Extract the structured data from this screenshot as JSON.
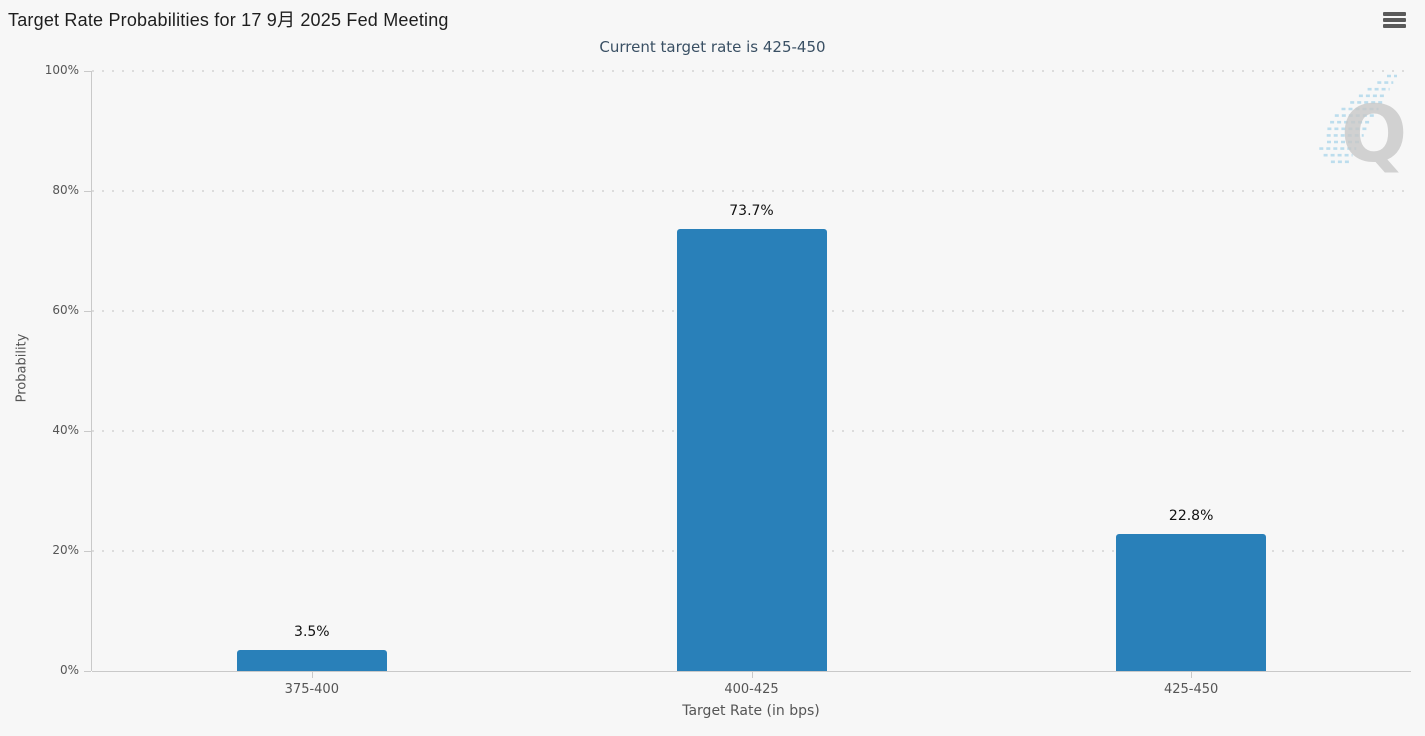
{
  "header": {
    "title": "Target Rate Probabilities for 17 9月 2025 Fed Meeting"
  },
  "subtitle": "Current target rate is 425-450",
  "watermark": {
    "letter": "Q"
  },
  "colors": {
    "bar": "#2980b9",
    "title_text": "#1e1e1e",
    "subtitle_text": "#3a5064",
    "axis_text": "#555555",
    "value_label_text": "#111111",
    "grid": "#dcdcdc",
    "axis_line": "#c9c9c9",
    "background": "#f7f7f7",
    "watermark_q": "#c8c8c8",
    "watermark_stripes": "#a9d5ea"
  },
  "chart_data": {
    "type": "bar",
    "title": "Target Rate Probabilities for 17 9月 2025 Fed Meeting",
    "subtitle": "Current target rate is 425-450",
    "categories": [
      "375-400",
      "400-425",
      "425-450"
    ],
    "values": [
      3.5,
      73.7,
      22.8
    ],
    "value_labels": [
      "3.5%",
      "73.7%",
      "22.8%"
    ],
    "xlabel": "Target Rate (in bps)",
    "ylabel": "Probability",
    "ylim": [
      0,
      100
    ],
    "yticks": [
      0,
      20,
      40,
      60,
      80,
      100
    ],
    "ytick_labels": [
      "0%",
      "20%",
      "40%",
      "60%",
      "80%",
      "100%"
    ],
    "grid": "dotted-horizontal",
    "legend_position": "none"
  }
}
